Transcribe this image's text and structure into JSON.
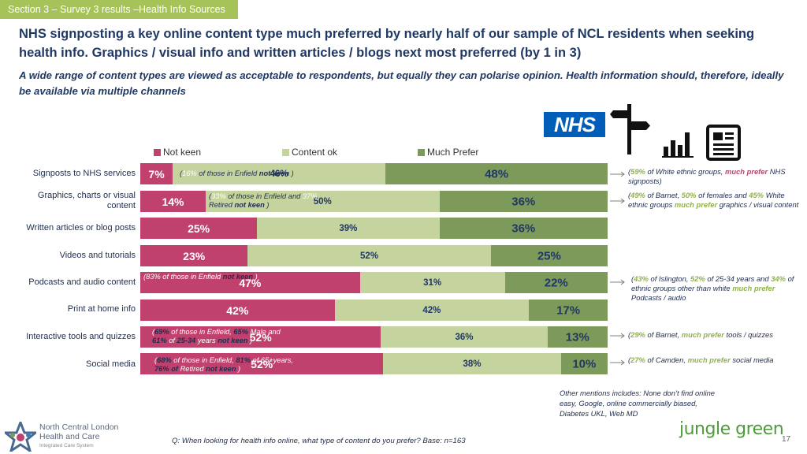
{
  "section_tag": "Section 3 – Survey 3 results –Health Info Sources",
  "headline": "NHS signposting a key online content type much preferred by nearly half of our sample of NCL residents when seeking health info.  Graphics / visual info and written articles / blogs next most preferred (by 1 in 3)",
  "subhead": "A wide range of content types are viewed as acceptable to respondents, but equally they can polarise opinion. Health information should, therefore, ideally be available via multiple channels",
  "nhs_logo_text": "NHS",
  "colors": {
    "not_keen": "#c0416d",
    "content_ok": "#c5d39e",
    "much_prefer": "#7d9a5b",
    "accent_green": "#8fb24a"
  },
  "chart_data": {
    "type": "bar",
    "orientation": "horizontal-stacked-100",
    "categories": [
      "Signposts to NHS services",
      "Graphics, charts or visual content",
      "Written articles or blog posts",
      "Videos and tutorials",
      "Podcasts and audio content",
      "Print at home info",
      "Interactive tools and quizzes",
      "Social media"
    ],
    "series": [
      {
        "name": "Not keen",
        "values": [
          7,
          14,
          25,
          23,
          47,
          42,
          52,
          52
        ]
      },
      {
        "name": "Content ok",
        "values": [
          46,
          50,
          39,
          52,
          31,
          42,
          36,
          38
        ]
      },
      {
        "name": "Much Prefer",
        "values": [
          48,
          36,
          36,
          25,
          22,
          17,
          13,
          10
        ]
      }
    ],
    "legend": [
      "Not keen",
      "Content ok",
      "Much Prefer"
    ],
    "legend_position": "top",
    "xlim": [
      0,
      100
    ]
  },
  "inline_notes": {
    "signposts": [
      "(",
      "16%",
      " of those in Enfield ",
      "not keen",
      " )"
    ],
    "graphics": [
      "(",
      "33%",
      " of those in Enfield and ",
      "37%",
      " Retired ",
      "not keen",
      " )"
    ],
    "podcasts": [
      "(",
      "83%",
      " of those in Enfield ",
      "not keen",
      " )"
    ],
    "interactive": [
      "(",
      "69%",
      " of those in Enfield, ",
      "65%",
      " Male and ",
      "61%",
      " of ",
      "25-34",
      " years ",
      "not keen",
      " )"
    ],
    "social": [
      "(",
      "68%",
      " of those in Enfield, ",
      "81%",
      " of 65+years, ",
      "76%",
      " of ",
      "Retired",
      " ",
      "not keen",
      " )"
    ]
  },
  "side_notes": {
    "signposts": [
      "(",
      "59%",
      " of White ethnic groups, ",
      "much prefer",
      " NHS signposts)"
    ],
    "graphics": [
      "(",
      "49%",
      " of Barnet, ",
      "50%",
      " of females and ",
      "45%",
      " White ethnic groups ",
      "much prefer",
      "  graphics / visual content"
    ],
    "podcasts": [
      "(",
      "43%",
      " of Islington, ",
      "52%",
      " of 25-34 years and ",
      "34%",
      " of ethnic groups other than white  ",
      "much prefer",
      " Podcasts  / audio"
    ],
    "interactive": [
      "(",
      "29%",
      " of Barnet, ",
      "much prefer",
      " tools / quizzes"
    ],
    "social": [
      "(",
      "27%",
      " of Camden, ",
      "much prefer",
      " social media"
    ]
  },
  "other_mentions": "Other mentions includes: None don’t find online easy, Google, online commercially biased, Diabetes UKL, Web MD",
  "question": "Q: When looking for health info online, what type of content do you prefer? Base: n=163",
  "ncl_logo": {
    "line1": "North Central London",
    "line2": "Health and Care",
    "line3": "Integrated Care System"
  },
  "jungle_green_logo": "jungle green",
  "page_number": "17"
}
